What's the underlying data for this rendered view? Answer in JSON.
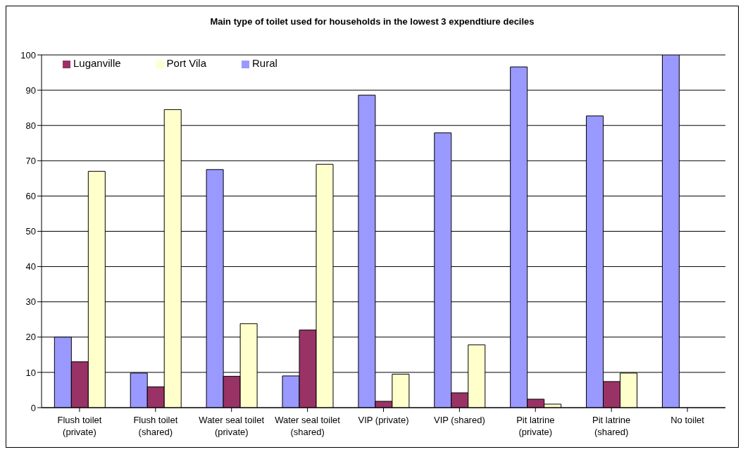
{
  "chart_data": {
    "type": "bar",
    "title": "Main type of toilet used for households in the lowest 3 expendtiure deciles",
    "categories": [
      "Flush toilet (private)",
      "Flush toilet (shared)",
      "Water seal toilet (private)",
      "Water seal toilet (shared)",
      "VIP (private)",
      "VIP (shared)",
      "Pit latrine (private)",
      "Pit latrine (shared)",
      "No toilet"
    ],
    "series": [
      {
        "name": "Rural",
        "color": "#9999ff",
        "values": [
          20,
          9.8,
          67.5,
          9,
          88.6,
          77.9,
          96.6,
          82.7,
          100
        ]
      },
      {
        "name": "Luganville",
        "color": "#993366",
        "values": [
          13,
          5.9,
          8.9,
          22,
          1.8,
          4.2,
          2.4,
          7.4,
          0
        ]
      },
      {
        "name": "Port Vila",
        "color": "#ffffcc",
        "values": [
          67,
          84.5,
          23.8,
          69,
          9.5,
          17.8,
          1,
          9.8,
          0
        ]
      }
    ],
    "ylim": [
      0,
      100
    ],
    "yticks": [
      0,
      10,
      20,
      30,
      40,
      50,
      60,
      70,
      80,
      90,
      100
    ],
    "grid": "y",
    "legend": "top left"
  }
}
